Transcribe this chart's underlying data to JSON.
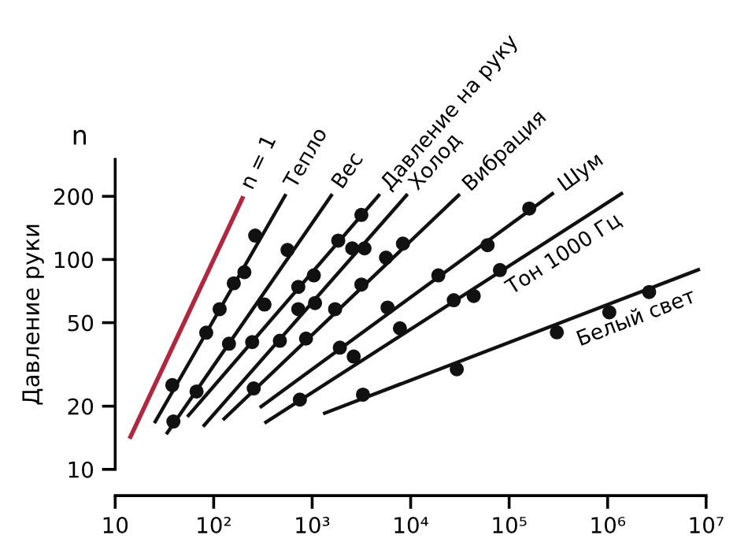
{
  "chart_data": {
    "type": "line",
    "ylabel": "Давление руки",
    "annotations": [
      "n"
    ],
    "log": "xy",
    "grid": false,
    "xlim": [
      10,
      10000000
    ],
    "ylim": [
      10,
      300
    ],
    "xticks": [
      10,
      {
        "value": 100,
        "label": "10²"
      },
      {
        "value": 1000,
        "label": "10³"
      },
      {
        "value": 10000,
        "label": "10⁴"
      },
      {
        "value": 100000,
        "label": "10⁵"
      },
      {
        "value": 1000000,
        "label": "10⁶"
      },
      {
        "value": 10000000,
        "label": "10⁷"
      }
    ],
    "yticks": [
      10,
      20,
      50,
      100,
      200
    ],
    "series": [
      {
        "name": "n = 1",
        "color": "#b02840",
        "x": [
          14,
          200
        ],
        "values": [
          14,
          200
        ]
      },
      {
        "name": "Тепло",
        "color": "#111111",
        "x": [
          25,
          542
        ],
        "values": [
          16.6,
          205
        ]
      },
      {
        "name": "Вес",
        "color": "#111111",
        "x": [
          33,
          1600
        ],
        "values": [
          14.7,
          205
        ]
      },
      {
        "name": "Давление на руку",
        "color": "#111111",
        "x": [
          54,
          4870
        ],
        "values": [
          17.8,
          205
        ]
      },
      {
        "name": "Холод",
        "color": "#111111",
        "x": [
          78,
          9310
        ],
        "values": [
          16,
          205
        ]
      },
      {
        "name": "Вибрация",
        "color": "#111111",
        "x": [
          124,
          31600
        ],
        "values": [
          17.2,
          205
        ]
      },
      {
        "name": "Шум",
        "color": "#111111",
        "x": [
          294,
          284000
        ],
        "values": [
          19.7,
          208
        ]
      },
      {
        "name": "Тон 1000 Гц",
        "color": "#111111",
        "x": [
          328,
          1430000
        ],
        "values": [
          16.6,
          208
        ]
      },
      {
        "name": "Белый свет",
        "color": "#111111",
        "x": [
          1290,
          8660000
        ],
        "values": [
          18.4,
          90
        ]
      },
      {
        "type": "scatter",
        "marker": "circle",
        "color": "#111111",
        "x": [
          38,
          84,
          115,
          160,
          205,
          264
        ],
        "values": [
          25.2,
          44.8,
          58,
          77,
          87,
          130
        ]
      },
      {
        "type": "scatter",
        "marker": "circle",
        "color": "#111111",
        "x": [
          39,
          67,
          143,
          328,
          562
        ],
        "values": [
          16.9,
          23.5,
          39.7,
          61,
          111
        ]
      },
      {
        "type": "scatter",
        "marker": "circle",
        "color": "#111111",
        "x": [
          246,
          723,
          1040,
          1840,
          3160
        ],
        "values": [
          40.4,
          74,
          84,
          123,
          163
        ]
      },
      {
        "type": "scatter",
        "marker": "circle",
        "color": "#111111",
        "x": [
          470,
          723,
          1070,
          2550,
          3400
        ],
        "values": [
          41,
          58,
          62,
          113,
          113
        ]
      },
      {
        "type": "scatter",
        "marker": "circle",
        "color": "#111111",
        "x": [
          255,
          866,
          1710,
          3160,
          5620,
          8350
        ],
        "values": [
          24.3,
          42,
          58,
          76,
          102,
          119
        ]
      },
      {
        "type": "scatter",
        "marker": "circle",
        "color": "#111111",
        "x": [
          1910,
          5830,
          19100,
          60400,
          160000
        ],
        "values": [
          38,
          59,
          84,
          117,
          175
        ]
      },
      {
        "type": "scatter",
        "marker": "circle",
        "color": "#111111",
        "x": [
          750,
          2640,
          7780,
          27400,
          43700,
          80600
        ],
        "values": [
          21.5,
          34.5,
          47,
          64,
          67,
          89
        ]
      },
      {
        "type": "scatter",
        "marker": "circle",
        "color": "#111111",
        "x": [
          3280,
          29400,
          305000,
          1040000,
          2640000
        ],
        "values": [
          22.7,
          30,
          45,
          56,
          70
        ]
      }
    ]
  }
}
